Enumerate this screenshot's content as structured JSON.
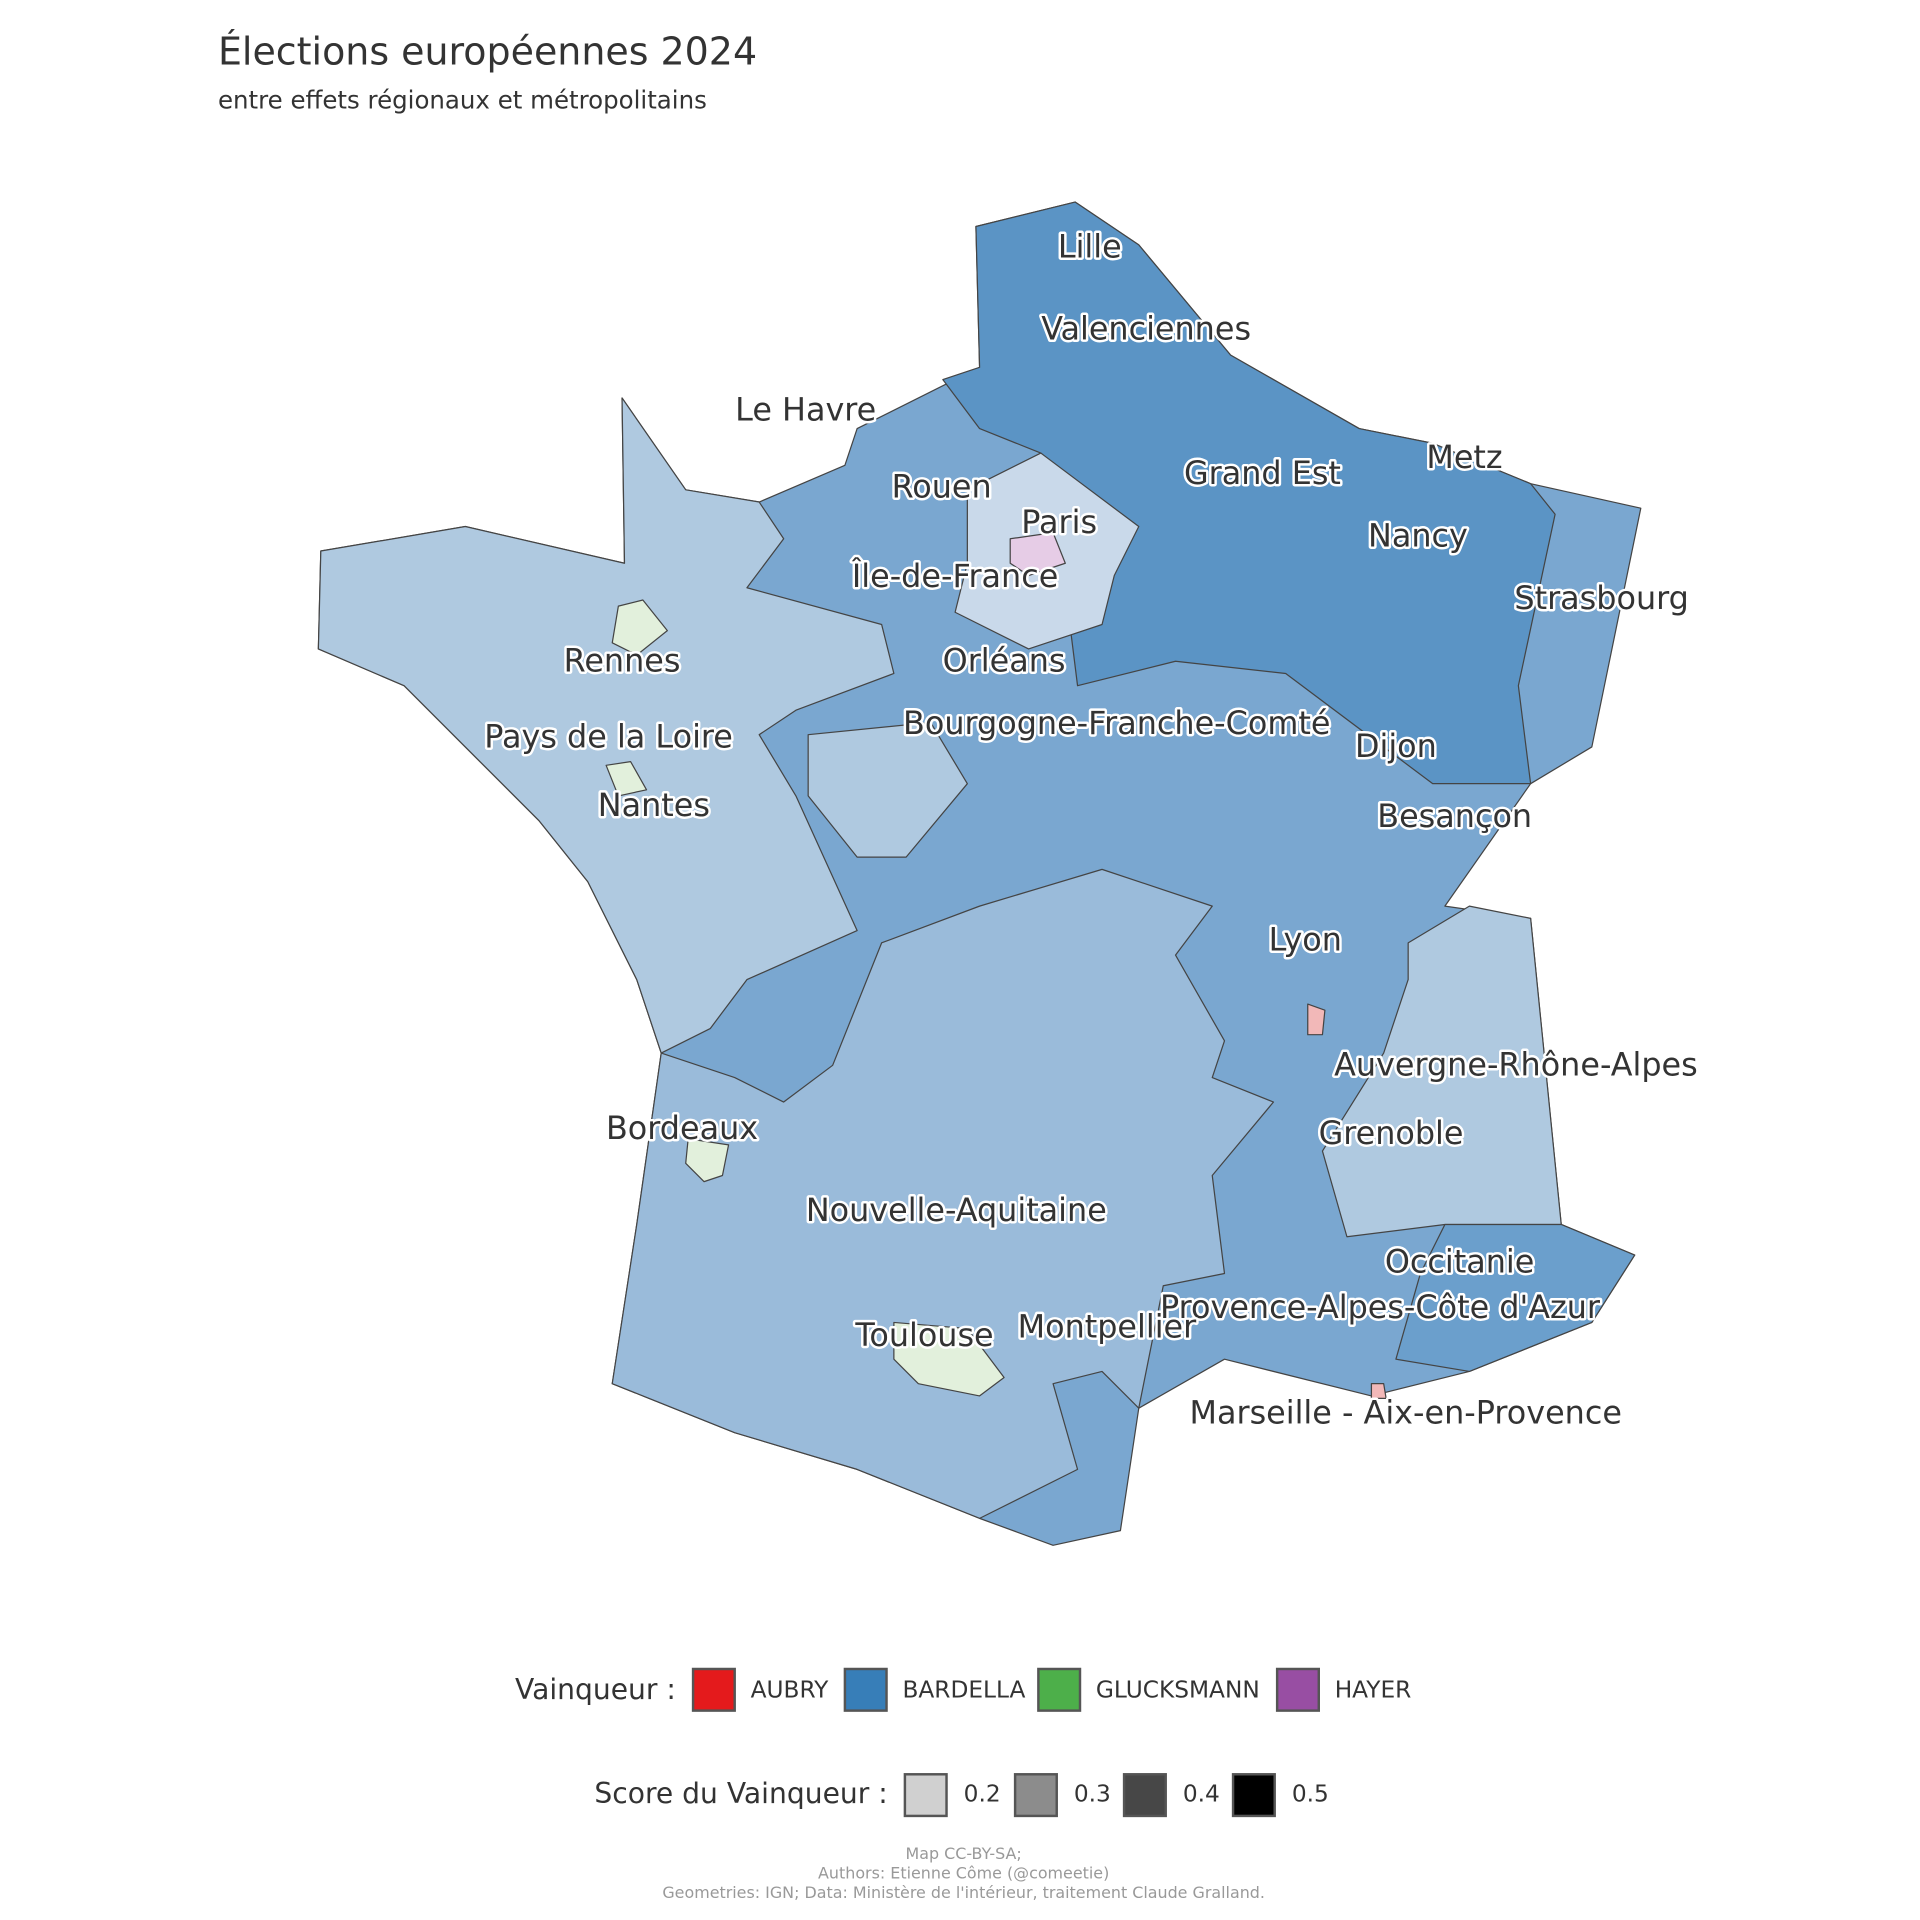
{
  "header": {
    "title": "Élections européennes 2024",
    "subtitle": "entre effets régionaux et métropolitains"
  },
  "map": {
    "labels": [
      "Lille",
      "Valenciennes",
      "Le Havre",
      "Rouen",
      "Grand Est",
      "Metz",
      "Paris",
      "Nancy",
      "Île-de-France",
      "Strasbourg",
      "Rennes",
      "Orléans",
      "Bourgogne-Franche-Comté",
      "Pays de la Loire",
      "Dijon",
      "Nantes",
      "Besançon",
      "Lyon",
      "Auvergne-Rhône-Alpes",
      "Bordeaux",
      "Grenoble",
      "Nouvelle-Aquitaine",
      "Occitanie",
      "Provence-Alpes-Côte d'Azur",
      "Toulouse",
      "Montpellier",
      "Marseille - Aix-en-Provence"
    ]
  },
  "legend": {
    "winner": {
      "title": "Vainqueur :",
      "items": [
        {
          "name": "AUBRY",
          "color": "#e41a1c"
        },
        {
          "name": "BARDELLA",
          "color": "#377eb8"
        },
        {
          "name": "GLUCKSMANN",
          "color": "#4daf4a"
        },
        {
          "name": "HAYER",
          "color": "#984ea3"
        }
      ]
    },
    "score": {
      "title": "Score du Vainqueur :",
      "items": [
        {
          "value": 0.2,
          "color": "#d0d0d0"
        },
        {
          "value": 0.3,
          "color": "#8c8c8c"
        },
        {
          "value": 0.4,
          "color": "#474747"
        },
        {
          "value": 0.5,
          "color": "#000000"
        }
      ]
    }
  },
  "footer": {
    "lines": [
      "Map CC-BY-SA;",
      "Authors: Etienne Côme (@comeetie)",
      "Geometries: IGN; Data: Ministère de l'intérieur, traitement Claude Gralland."
    ]
  }
}
